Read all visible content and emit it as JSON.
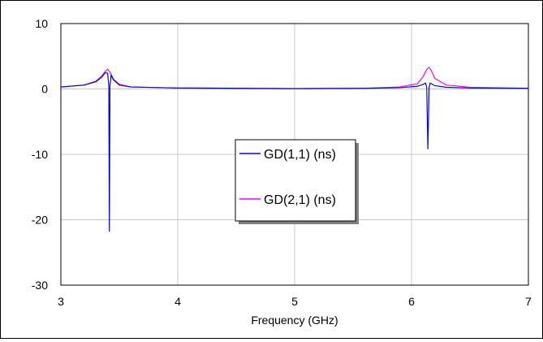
{
  "chart_data": {
    "type": "line",
    "title": "",
    "xlabel": "Frequency (GHz)",
    "ylabel": "",
    "xlim": [
      3,
      7
    ],
    "ylim": [
      -30,
      10
    ],
    "xticks": [
      3,
      4,
      5,
      6,
      7
    ],
    "xtick_labels": [
      "3",
      "4",
      "5",
      "6",
      "7"
    ],
    "yticks": [
      10,
      0,
      -10,
      -20,
      -30
    ],
    "ytick_labels": [
      "10",
      "0",
      "-10",
      "-20",
      "-30"
    ],
    "grid": true,
    "legend_position": "center",
    "series": [
      {
        "name": "GD(1,1) (ns)",
        "color": "#0000ff",
        "x": [
          3.0,
          3.2,
          3.3,
          3.35,
          3.38,
          3.4,
          3.41,
          3.415,
          3.42,
          3.43,
          3.45,
          3.5,
          3.6,
          4.0,
          5.0,
          5.6,
          5.9,
          6.05,
          6.1,
          6.12,
          6.13,
          6.14,
          6.15,
          6.16,
          6.18,
          6.2,
          6.3,
          6.5,
          7.0
        ],
        "values": [
          0.3,
          0.6,
          1.1,
          1.8,
          2.5,
          2.4,
          0.5,
          -21.8,
          0.5,
          2.1,
          1.4,
          0.6,
          0.3,
          0.15,
          0.05,
          0.1,
          0.2,
          0.4,
          0.7,
          0.9,
          0.3,
          -9.2,
          0.2,
          0.9,
          0.7,
          0.5,
          0.25,
          0.15,
          0.1
        ]
      },
      {
        "name": "GD(2,1) (ns)",
        "color": "#ff00ff",
        "x": [
          3.0,
          3.2,
          3.3,
          3.35,
          3.38,
          3.4,
          3.42,
          3.45,
          3.5,
          3.6,
          4.0,
          5.0,
          5.6,
          5.9,
          6.05,
          6.1,
          6.13,
          6.15,
          6.17,
          6.2,
          6.3,
          6.5,
          7.0
        ],
        "values": [
          0.3,
          0.6,
          1.2,
          2.0,
          2.7,
          3.0,
          2.6,
          1.5,
          0.7,
          0.3,
          0.15,
          0.05,
          0.1,
          0.3,
          0.8,
          1.9,
          3.0,
          3.3,
          2.8,
          1.6,
          0.6,
          0.25,
          0.1
        ]
      }
    ]
  }
}
